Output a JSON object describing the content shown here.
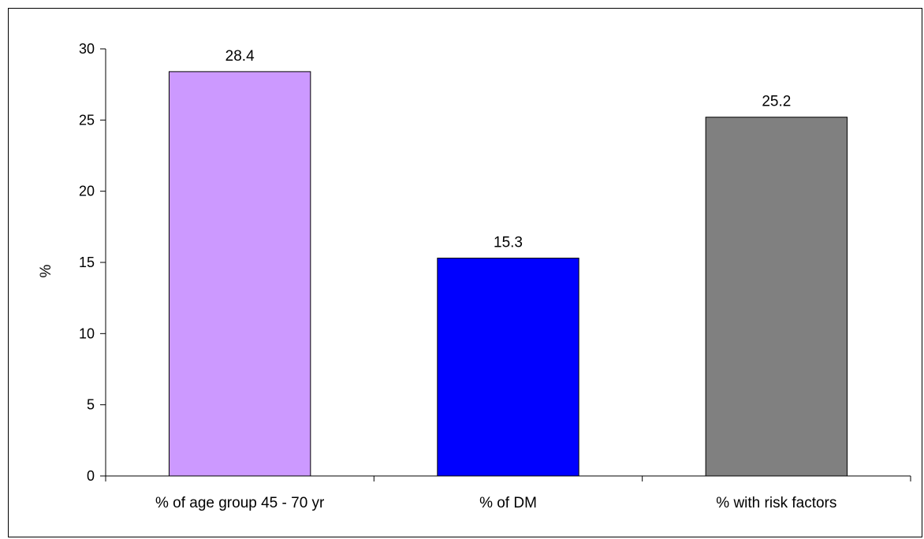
{
  "chart_data": {
    "type": "bar",
    "categories": [
      "% of age group 45 - 70 yr",
      "% of DM",
      "% with risk factors"
    ],
    "values": [
      28.4,
      15.3,
      25.2
    ],
    "data_labels": [
      "28.4",
      "15.3",
      "25.2"
    ],
    "ylabel": "%",
    "xlabel": "",
    "ylim": [
      0,
      30
    ],
    "yticks": [
      0,
      5,
      10,
      15,
      20,
      25,
      30
    ],
    "grid": false,
    "bar_colors": [
      "#cc99ff",
      "#0000ff",
      "#808080"
    ],
    "bar_edge_color": "#000000"
  }
}
